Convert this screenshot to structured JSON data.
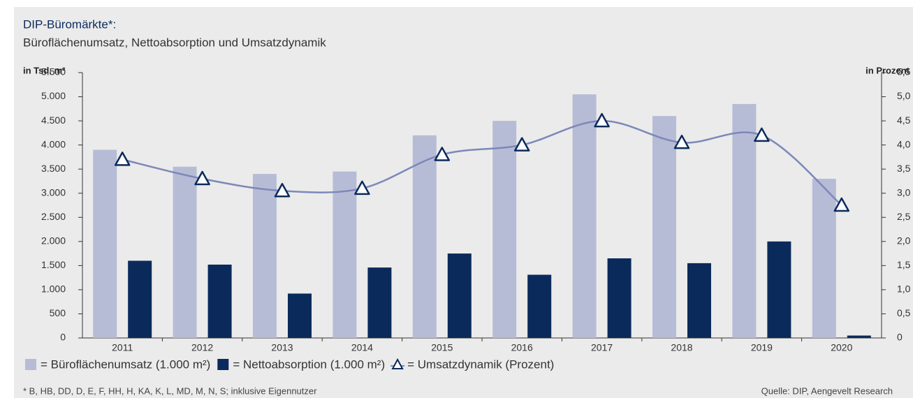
{
  "chart_data": {
    "type": "bar_line",
    "title": "DIP-Büromärkte*:",
    "subtitle": "Büroflächenumsatz, Nettoabsorption und Umsatzdynamik",
    "y_label": "in Tsd. m²",
    "y2_label": "in Prozent",
    "footnote": "* B, HB, DD, D, E, F, HH, H, KA, K, L, MD, M, N, S; inklusive Eigennutzer",
    "source": "Quelle: DIP, Aengevelt Research",
    "categories": [
      "2011",
      "2012",
      "2013",
      "2014",
      "2015",
      "2016",
      "2017",
      "2018",
      "2019",
      "2020"
    ],
    "series": [
      {
        "name": "= Büroflächenumsatz (1.000 m²)",
        "type": "bar",
        "color": "#b7bcd6",
        "values": [
          3900,
          3550,
          3400,
          3450,
          4200,
          4500,
          5050,
          4600,
          4850,
          3300
        ]
      },
      {
        "name": "= Nettoabsorption (1.000 m²)",
        "type": "bar",
        "color": "#0b2a5c",
        "values": [
          1600,
          1520,
          920,
          1460,
          1750,
          1310,
          1650,
          1550,
          2000,
          50
        ]
      },
      {
        "name": "= Umsatzdynamik (Prozent)",
        "type": "line",
        "axis": "y2",
        "color": "#7c88b8",
        "marker_color": "#0b2a5c",
        "values": [
          3.7,
          3.3,
          3.05,
          3.1,
          3.8,
          4.0,
          4.5,
          4.05,
          4.2,
          2.75
        ]
      }
    ],
    "ylim": [
      0,
      5500
    ],
    "yticks": [
      0,
      500,
      {
        "value": 1000,
        "label": "1.000"
      },
      {
        "value": 1500,
        "label": "1.500"
      },
      {
        "value": 2000,
        "label": "2.000"
      },
      {
        "value": 2500,
        "label": "2.500"
      },
      {
        "value": 3000,
        "label": "3.000"
      },
      {
        "value": 3500,
        "label": "3.500"
      },
      {
        "value": 4000,
        "label": "4.000"
      },
      {
        "value": 4500,
        "label": "4.500"
      },
      {
        "value": 5000,
        "label": "5.000"
      },
      {
        "value": 5500,
        "label": "5.500"
      }
    ],
    "y2lim": [
      0,
      5.5
    ],
    "y2ticks": [
      0,
      {
        "value": 0.5,
        "label": "0,5"
      },
      {
        "value": 1,
        "label": "1,0"
      },
      {
        "value": 1.5,
        "label": "1,5"
      },
      {
        "value": 2,
        "label": "2,0"
      },
      {
        "value": 2.5,
        "label": "2,5"
      },
      {
        "value": 3,
        "label": "3,0"
      },
      {
        "value": 3.5,
        "label": "3,5"
      },
      {
        "value": 4,
        "label": "4,0"
      },
      {
        "value": 4.5,
        "label": "4,5"
      },
      {
        "value": 5,
        "label": "5,0"
      },
      {
        "value": 5.5,
        "label": "5,5"
      }
    ]
  }
}
